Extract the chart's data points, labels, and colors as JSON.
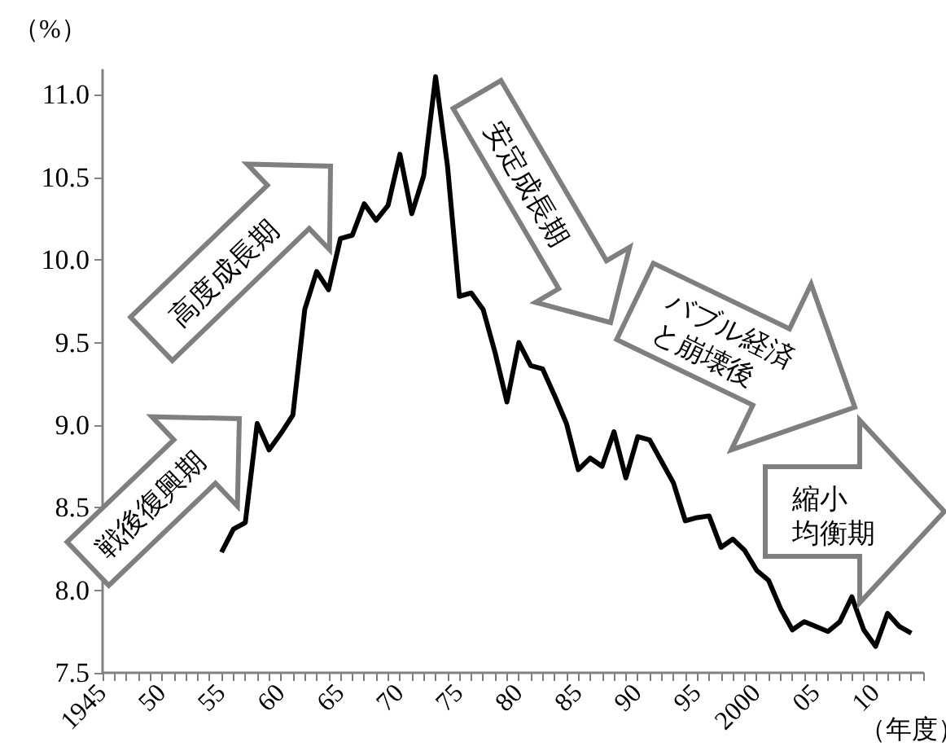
{
  "chart_data": {
    "type": "line",
    "xlabel": "（年度）",
    "ylabel": "（%）",
    "annotations": [
      "戦後復興期",
      "高度成長期",
      "安定成長期",
      "バブル経済と崩壊後",
      "縮小均衡期"
    ],
    "x": [
      1955,
      1956,
      1957,
      1958,
      1959,
      1960,
      1961,
      1962,
      1963,
      1964,
      1965,
      1966,
      1967,
      1968,
      1969,
      1970,
      1971,
      1972,
      1973,
      1974,
      1975,
      1976,
      1977,
      1978,
      1979,
      1980,
      1981,
      1982,
      1983,
      1984,
      1985,
      1986,
      1987,
      1988,
      1989,
      1990,
      1991,
      1992,
      1993,
      1994,
      1995,
      1996,
      1997,
      1998,
      1999,
      2000,
      2001,
      2002,
      2003,
      2004,
      2005,
      2006,
      2007,
      2008,
      2009,
      2010,
      2011,
      2012,
      2013
    ],
    "series": [
      {
        "color": "#000000",
        "values": [
          8.23,
          8.37,
          8.41,
          9.01,
          8.85,
          8.95,
          9.06,
          9.7,
          9.93,
          9.82,
          10.13,
          10.15,
          10.34,
          10.24,
          10.33,
          10.64,
          10.28,
          10.51,
          11.11,
          10.57,
          9.78,
          9.8,
          9.7,
          9.44,
          9.14,
          9.5,
          9.36,
          9.34,
          9.18,
          9.01,
          8.73,
          8.8,
          8.75,
          8.96,
          8.68,
          8.93,
          8.91,
          8.78,
          8.65,
          8.42,
          8.44,
          8.45,
          8.26,
          8.31,
          8.24,
          8.12,
          8.06,
          7.89,
          7.76,
          7.81,
          7.78,
          7.75,
          7.81,
          7.96,
          7.76,
          7.66,
          7.86,
          7.78,
          7.74
        ]
      }
    ],
    "marker": "none",
    "line_style": "solid",
    "xlim": [
      1945,
      2014
    ],
    "xticks": [
      1945,
      {
        "value": 1946,
        "label": null
      },
      {
        "value": 1947,
        "label": null
      },
      {
        "value": 1948,
        "label": null
      },
      {
        "value": 1949,
        "label": null
      },
      {
        "value": 1950,
        "label": "50"
      },
      {
        "value": 1951,
        "label": null
      },
      {
        "value": 1952,
        "label": null
      },
      {
        "value": 1953,
        "label": null
      },
      {
        "value": 1954,
        "label": null
      },
      {
        "value": 1955,
        "label": "55"
      },
      {
        "value": 1956,
        "label": null
      },
      {
        "value": 1957,
        "label": null
      },
      {
        "value": 1958,
        "label": null
      },
      {
        "value": 1959,
        "label": null
      },
      {
        "value": 1960,
        "label": "60"
      },
      {
        "value": 1961,
        "label": null
      },
      {
        "value": 1962,
        "label": null
      },
      {
        "value": 1963,
        "label": null
      },
      {
        "value": 1964,
        "label": null
      },
      {
        "value": 1965,
        "label": "65"
      },
      {
        "value": 1966,
        "label": null
      },
      {
        "value": 1967,
        "label": null
      },
      {
        "value": 1968,
        "label": null
      },
      {
        "value": 1969,
        "label": null
      },
      {
        "value": 1970,
        "label": "70"
      },
      {
        "value": 1971,
        "label": null
      },
      {
        "value": 1972,
        "label": null
      },
      {
        "value": 1973,
        "label": null
      },
      {
        "value": 1974,
        "label": null
      },
      {
        "value": 1975,
        "label": "75"
      },
      {
        "value": 1976,
        "label": null
      },
      {
        "value": 1977,
        "label": null
      },
      {
        "value": 1978,
        "label": null
      },
      {
        "value": 1979,
        "label": null
      },
      {
        "value": 1980,
        "label": "80"
      },
      {
        "value": 1981,
        "label": null
      },
      {
        "value": 1982,
        "label": null
      },
      {
        "value": 1983,
        "label": null
      },
      {
        "value": 1984,
        "label": null
      },
      {
        "value": 1985,
        "label": "85"
      },
      {
        "value": 1986,
        "label": null
      },
      {
        "value": 1987,
        "label": null
      },
      {
        "value": 1988,
        "label": null
      },
      {
        "value": 1989,
        "label": null
      },
      {
        "value": 1990,
        "label": "90"
      },
      {
        "value": 1991,
        "label": null
      },
      {
        "value": 1992,
        "label": null
      },
      {
        "value": 1993,
        "label": null
      },
      {
        "value": 1994,
        "label": null
      },
      {
        "value": 1995,
        "label": "95"
      },
      {
        "value": 1996,
        "label": null
      },
      {
        "value": 1997,
        "label": null
      },
      {
        "value": 1998,
        "label": null
      },
      {
        "value": 1999,
        "label": null
      },
      2000,
      {
        "value": 2001,
        "label": null
      },
      {
        "value": 2002,
        "label": null
      },
      {
        "value": 2003,
        "label": null
      },
      {
        "value": 2004,
        "label": null
      },
      {
        "value": 2005,
        "label": "05"
      },
      {
        "value": 2006,
        "label": null
      },
      {
        "value": 2007,
        "label": null
      },
      {
        "value": 2008,
        "label": null
      },
      {
        "value": 2009,
        "label": null
      },
      {
        "value": 2010,
        "label": "10"
      },
      {
        "value": 2011,
        "label": null
      },
      {
        "value": 2012,
        "label": null
      },
      {
        "value": 2013,
        "label": null
      },
      {
        "value": 2014,
        "label": null
      }
    ],
    "ylim": [
      7.5,
      11.15
    ],
    "yticks": [
      7.5,
      {
        "value": 8,
        "label": "8.0"
      },
      8.5,
      {
        "value": 9,
        "label": "9.0"
      },
      9.5,
      {
        "value": 10,
        "label": "10.0"
      },
      10.5,
      {
        "value": 11,
        "label": "11.0"
      }
    ]
  }
}
